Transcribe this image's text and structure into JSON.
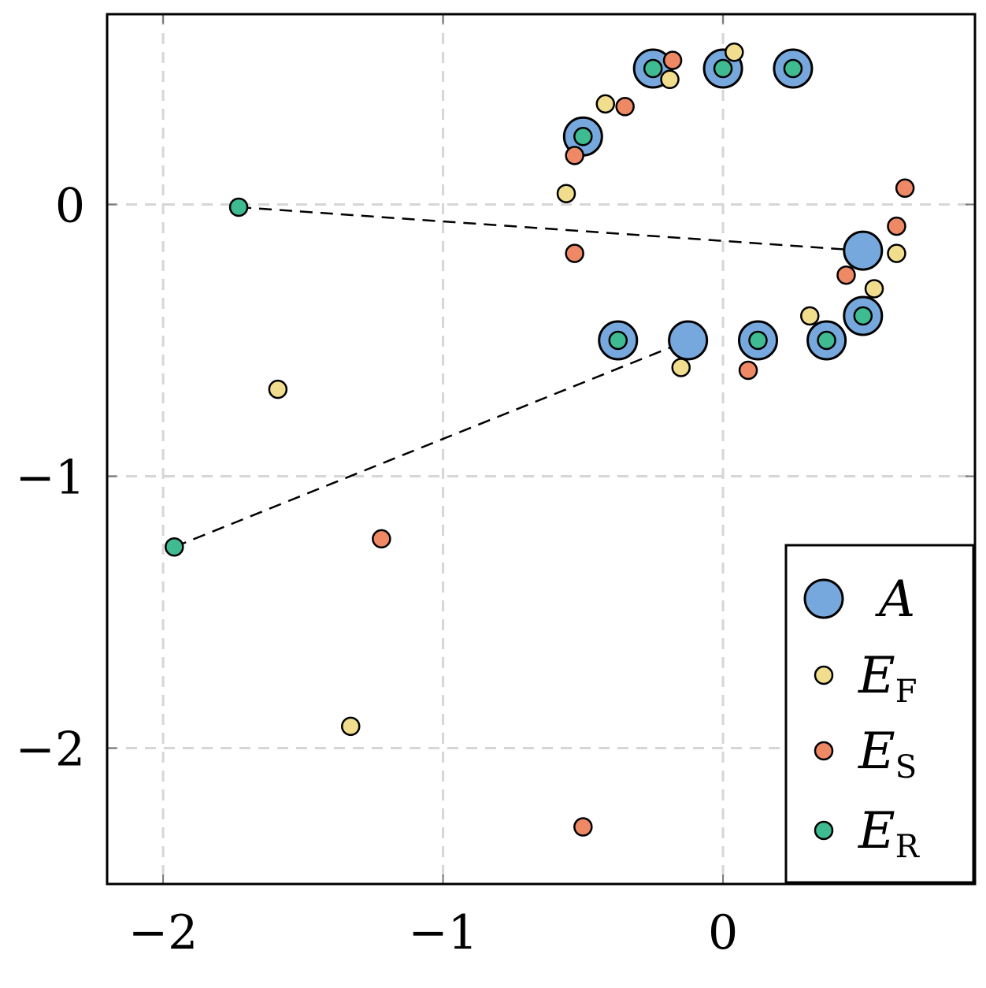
{
  "chart_data": {
    "type": "scatter",
    "title": "",
    "xlabel": "",
    "ylabel": "",
    "xlim": [
      -2.2,
      0.9
    ],
    "ylim": [
      -2.5,
      0.7
    ],
    "grid": true,
    "grid_style": "dashed",
    "legend_position": "bottom-right",
    "x_ticks": [
      -2,
      -1,
      0
    ],
    "x_tick_labels": [
      "−2",
      "−1",
      "0"
    ],
    "y_ticks": [
      0,
      -1,
      -2
    ],
    "y_tick_labels": [
      "0",
      "−1",
      "−2"
    ],
    "series": [
      {
        "name": "A",
        "label_main": "A",
        "label_sub": "",
        "color": "#77a8dd",
        "marker": "large-circle",
        "points": [
          [
            -0.25,
            0.5
          ],
          [
            0.0,
            0.5
          ],
          [
            0.25,
            0.5
          ],
          [
            -0.5,
            0.25
          ],
          [
            0.5,
            -0.17
          ],
          [
            0.5,
            -0.41
          ],
          [
            0.37,
            -0.5
          ],
          [
            0.125,
            -0.5
          ],
          [
            -0.125,
            -0.5
          ],
          [
            -0.375,
            -0.5
          ]
        ]
      },
      {
        "name": "E_F",
        "label_main": "E",
        "label_sub": "F",
        "color": "#f1dd8e",
        "marker": "small-circle",
        "points": [
          [
            0.04,
            0.56
          ],
          [
            -0.19,
            0.46
          ],
          [
            -0.42,
            0.37
          ],
          [
            -0.56,
            0.04
          ],
          [
            0.62,
            -0.18
          ],
          [
            0.54,
            -0.31
          ],
          [
            0.31,
            -0.41
          ],
          [
            -0.15,
            -0.6
          ],
          [
            -1.59,
            -0.68
          ],
          [
            -1.33,
            -1.92
          ]
        ]
      },
      {
        "name": "E_S",
        "label_main": "E",
        "label_sub": "S",
        "color": "#ee8865",
        "marker": "small-circle",
        "points": [
          [
            -0.18,
            0.53
          ],
          [
            -0.35,
            0.36
          ],
          [
            -0.53,
            0.18
          ],
          [
            0.65,
            0.06
          ],
          [
            0.62,
            -0.08
          ],
          [
            -0.53,
            -0.18
          ],
          [
            0.44,
            -0.26
          ],
          [
            0.09,
            -0.61
          ],
          [
            -1.22,
            -1.23
          ],
          [
            -0.5,
            -2.29
          ]
        ]
      },
      {
        "name": "E_R",
        "label_main": "E",
        "label_sub": "R",
        "color": "#3fbb92",
        "marker": "small-circle",
        "points": [
          [
            -0.25,
            0.5
          ],
          [
            0.0,
            0.5
          ],
          [
            0.25,
            0.5
          ],
          [
            -0.5,
            0.25
          ],
          [
            -1.73,
            -0.01
          ],
          [
            0.5,
            -0.41
          ],
          [
            0.37,
            -0.5
          ],
          [
            0.125,
            -0.5
          ],
          [
            -0.375,
            -0.5
          ],
          [
            -1.96,
            -1.26
          ]
        ]
      }
    ],
    "connector_lines": [
      {
        "from": [
          -1.73,
          -0.01
        ],
        "to": [
          0.5,
          -0.17
        ]
      },
      {
        "from": [
          -1.96,
          -1.26
        ],
        "to": [
          -0.125,
          -0.5
        ]
      }
    ]
  }
}
